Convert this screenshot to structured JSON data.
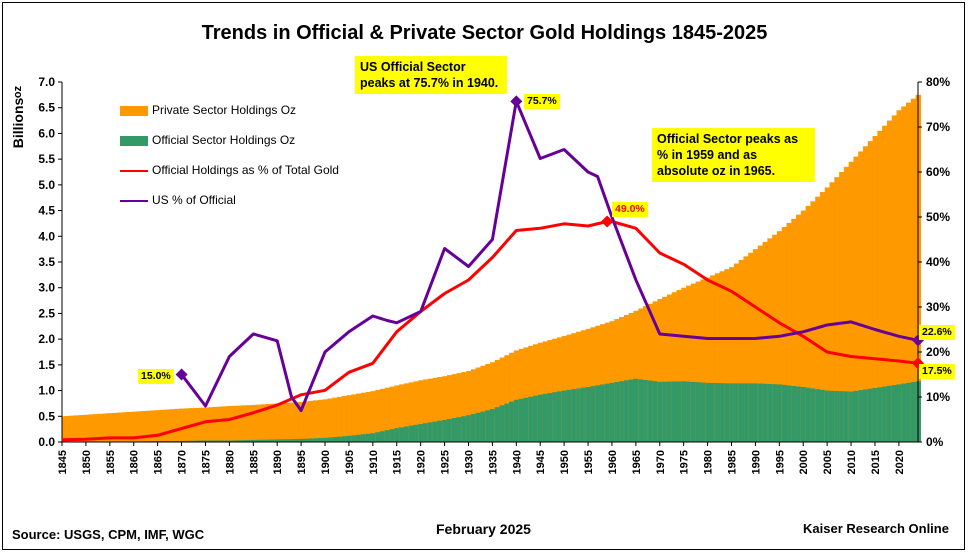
{
  "title": "Trends in Official & Private Sector Gold Holdings 1845-2025",
  "footer": {
    "source": "Source: USGS, CPM, IMF, WGC",
    "date": "February 2025",
    "credit": "Kaiser Research Online"
  },
  "callouts": {
    "us_peak": "US Official Sector peaks at 75.7% in 1940.",
    "official_peak": "Official Sector peaks as % in 1959 and as absolute oz in 1965."
  },
  "tags": {
    "us_1870": "15.0%",
    "us_1940": "75.7%",
    "off_1959": "49.0%",
    "us_2024": "22.6%",
    "off_2024": "17.5%"
  },
  "colors": {
    "private": "#ff9900",
    "official": "#339966",
    "official_pct": "#ff0000",
    "us_pct": "#660099",
    "callout_bg": "#ffff00"
  },
  "chart_data": {
    "type": "area",
    "title": "Trends in Official & Private Sector Gold Holdings 1845-2025",
    "ylabel": "Billions oz",
    "y2label": "",
    "xlim": [
      1845,
      2024
    ],
    "ylim": [
      0,
      7.0
    ],
    "y2lim": [
      0,
      80
    ],
    "grid": false,
    "legend_placement": "top-left",
    "x_ticks": [
      "1845",
      "1850",
      "1855",
      "1860",
      "1865",
      "1870",
      "1875",
      "1880",
      "1885",
      "1890",
      "1895",
      "1900",
      "1905",
      "1910",
      "1915",
      "1920",
      "1925",
      "1930",
      "1935",
      "1940",
      "1945",
      "1950",
      "1955",
      "1960",
      "1965",
      "1970",
      "1975",
      "1980",
      "1985",
      "1990",
      "1995",
      "2000",
      "2005",
      "2010",
      "2015",
      "2020"
    ],
    "y_ticks": [
      "0.0",
      "0.5",
      "1.0",
      "1.5",
      "2.0",
      "2.5",
      "3.0",
      "3.5",
      "4.0",
      "4.5",
      "5.0",
      "5.5",
      "6.0",
      "6.5",
      "7.0"
    ],
    "y2_ticks": [
      "0%",
      "10%",
      "20%",
      "30%",
      "40%",
      "50%",
      "60%",
      "70%",
      "80%"
    ],
    "series": [
      {
        "name": "Private Sector Holdings Oz",
        "kind": "area",
        "axis": "left",
        "x": [
          1845,
          1850,
          1855,
          1860,
          1865,
          1870,
          1875,
          1880,
          1885,
          1890,
          1895,
          1900,
          1905,
          1910,
          1915,
          1920,
          1925,
          1930,
          1935,
          1940,
          1945,
          1950,
          1955,
          1960,
          1965,
          1970,
          1975,
          1980,
          1985,
          1990,
          1995,
          2000,
          2005,
          2010,
          2015,
          2020,
          2024
        ],
        "values": [
          0.5,
          0.53,
          0.56,
          0.59,
          0.62,
          0.65,
          0.67,
          0.7,
          0.72,
          0.75,
          0.78,
          0.83,
          0.91,
          0.99,
          1.1,
          1.2,
          1.28,
          1.38,
          1.55,
          1.78,
          1.93,
          2.06,
          2.2,
          2.35,
          2.55,
          2.78,
          3.0,
          3.2,
          3.4,
          3.75,
          4.1,
          4.5,
          4.95,
          5.45,
          5.95,
          6.45,
          6.75
        ]
      },
      {
        "name": "Official Sector Holdings Oz",
        "kind": "area",
        "axis": "left",
        "x": [
          1845,
          1850,
          1855,
          1860,
          1865,
          1870,
          1875,
          1880,
          1885,
          1890,
          1895,
          1900,
          1905,
          1910,
          1915,
          1920,
          1925,
          1930,
          1935,
          1940,
          1945,
          1950,
          1955,
          1960,
          1965,
          1970,
          1975,
          1980,
          1985,
          1990,
          1995,
          2000,
          2005,
          2010,
          2015,
          2020,
          2024
        ],
        "values": [
          0.01,
          0.01,
          0.01,
          0.01,
          0.02,
          0.02,
          0.03,
          0.03,
          0.04,
          0.05,
          0.06,
          0.08,
          0.12,
          0.17,
          0.27,
          0.35,
          0.43,
          0.52,
          0.64,
          0.82,
          0.92,
          1.0,
          1.07,
          1.15,
          1.23,
          1.17,
          1.18,
          1.15,
          1.14,
          1.14,
          1.12,
          1.07,
          1.0,
          0.98,
          1.05,
          1.12,
          1.18
        ]
      },
      {
        "name": "Official Holdings as % of Total Gold",
        "kind": "line",
        "axis": "right",
        "x": [
          1845,
          1850,
          1855,
          1860,
          1865,
          1870,
          1875,
          1880,
          1885,
          1890,
          1895,
          1900,
          1905,
          1910,
          1915,
          1920,
          1925,
          1930,
          1935,
          1940,
          1945,
          1950,
          1955,
          1959,
          1960,
          1965,
          1970,
          1975,
          1980,
          1985,
          1990,
          1995,
          2000,
          2005,
          2010,
          2015,
          2020,
          2024
        ],
        "values": [
          0.5,
          0.6,
          0.9,
          0.9,
          1.5,
          3.0,
          4.5,
          5.0,
          6.5,
          8.2,
          10.5,
          11.5,
          15.5,
          17.5,
          24.5,
          29.0,
          33.0,
          36.0,
          41.0,
          47.0,
          47.5,
          48.5,
          48.0,
          49.0,
          49.0,
          47.5,
          42.0,
          39.5,
          36.0,
          33.5,
          30.0,
          26.5,
          23.5,
          20.0,
          19.0,
          18.5,
          18.0,
          17.5
        ]
      },
      {
        "name": "US % of Official",
        "kind": "line",
        "axis": "right",
        "x": [
          1870,
          1875,
          1880,
          1885,
          1890,
          1893,
          1895,
          1900,
          1905,
          1910,
          1913,
          1915,
          1920,
          1925,
          1930,
          1935,
          1940,
          1945,
          1950,
          1955,
          1957,
          1960,
          1965,
          1970,
          1975,
          1980,
          1985,
          1990,
          1995,
          2000,
          2005,
          2010,
          2015,
          2020,
          2024
        ],
        "values": [
          15.0,
          8.0,
          19.0,
          24.0,
          22.5,
          10.0,
          7.0,
          20.0,
          24.5,
          28.0,
          27.0,
          26.5,
          29.0,
          43.0,
          39.0,
          45.0,
          75.7,
          63.0,
          65.0,
          60.0,
          59.0,
          50.0,
          36.0,
          24.0,
          23.5,
          23.0,
          23.0,
          23.0,
          23.5,
          24.5,
          26.0,
          26.7,
          25.0,
          23.5,
          22.6
        ]
      }
    ],
    "markers": [
      {
        "series": "US % of Official",
        "x": 1870,
        "y": 15.0,
        "label": "15.0%"
      },
      {
        "series": "US % of Official",
        "x": 1940,
        "y": 75.7,
        "label": "75.7%"
      },
      {
        "series": "Official Holdings as % of Total Gold",
        "x": 1959,
        "y": 49.0,
        "label": "49.0%"
      },
      {
        "series": "US % of Official",
        "x": 2024,
        "y": 22.6,
        "label": "22.6%"
      },
      {
        "series": "Official Holdings as % of Total Gold",
        "x": 2024,
        "y": 17.5,
        "label": "17.5%"
      }
    ]
  }
}
